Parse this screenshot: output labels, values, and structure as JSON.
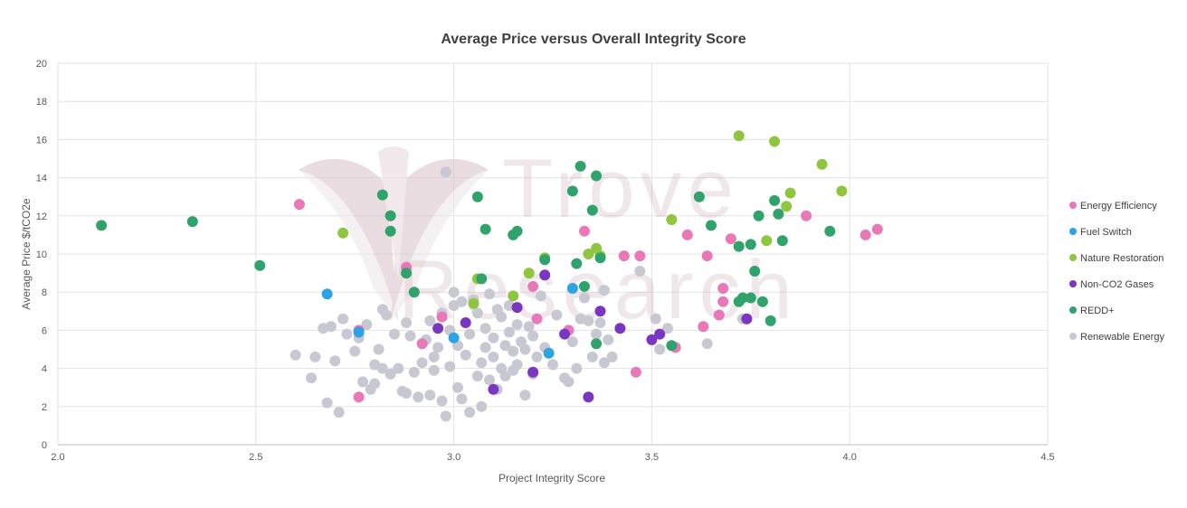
{
  "chart_data": {
    "type": "scatter",
    "title": "Average Price versus Overall Integrity Score",
    "xlabel": "Project Integrity Score",
    "ylabel": "Average Price $/tCO2e",
    "xlim": [
      2.0,
      4.5
    ],
    "ylim": [
      0,
      20
    ],
    "x_ticks": [
      "2.0",
      "2.5",
      "3.0",
      "3.5",
      "4.0",
      "4.5"
    ],
    "y_ticks": [
      "0",
      "2",
      "4",
      "6",
      "8",
      "10",
      "12",
      "14",
      "16",
      "18",
      "20"
    ],
    "grid": true,
    "legend_position": "right",
    "watermark": {
      "line1": "Trove",
      "line2": "Research"
    },
    "series": [
      {
        "name": "Energy Efficiency",
        "color": "#e878b8",
        "points": [
          [
            2.61,
            12.6
          ],
          [
            2.76,
            2.5
          ],
          [
            2.76,
            6.0
          ],
          [
            2.88,
            9.3
          ],
          [
            2.92,
            5.3
          ],
          [
            2.97,
            6.7
          ],
          [
            3.2,
            8.3
          ],
          [
            3.21,
            6.6
          ],
          [
            3.29,
            6.0
          ],
          [
            3.33,
            11.2
          ],
          [
            3.43,
            9.9
          ],
          [
            3.46,
            3.8
          ],
          [
            3.47,
            9.9
          ],
          [
            3.56,
            5.1
          ],
          [
            3.59,
            11.0
          ],
          [
            3.63,
            6.2
          ],
          [
            3.64,
            9.9
          ],
          [
            3.67,
            6.8
          ],
          [
            3.68,
            7.5
          ],
          [
            3.68,
            8.2
          ],
          [
            3.7,
            10.8
          ],
          [
            3.89,
            12.0
          ],
          [
            4.04,
            11.0
          ],
          [
            4.07,
            11.3
          ]
        ]
      },
      {
        "name": "Fuel Switch",
        "color": "#2ea3e4",
        "points": [
          [
            2.68,
            7.9
          ],
          [
            2.76,
            5.9
          ],
          [
            3.0,
            5.6
          ],
          [
            3.24,
            4.8
          ],
          [
            3.3,
            8.2
          ]
        ]
      },
      {
        "name": "Nature Restoration",
        "color": "#8fc640",
        "points": [
          [
            2.72,
            11.1
          ],
          [
            3.05,
            7.4
          ],
          [
            3.06,
            8.7
          ],
          [
            3.15,
            7.8
          ],
          [
            3.19,
            9.0
          ],
          [
            3.23,
            9.8
          ],
          [
            3.34,
            10.0
          ],
          [
            3.36,
            10.3
          ],
          [
            3.37,
            9.9
          ],
          [
            3.55,
            11.8
          ],
          [
            3.72,
            16.2
          ],
          [
            3.79,
            10.7
          ],
          [
            3.81,
            15.9
          ],
          [
            3.84,
            12.5
          ],
          [
            3.85,
            13.2
          ],
          [
            3.93,
            14.7
          ],
          [
            3.98,
            13.3
          ]
        ]
      },
      {
        "name": "Non-CO2 Gases",
        "color": "#7a35c1",
        "points": [
          [
            2.96,
            6.1
          ],
          [
            3.03,
            6.4
          ],
          [
            3.1,
            2.9
          ],
          [
            3.16,
            7.2
          ],
          [
            3.2,
            3.8
          ],
          [
            3.23,
            8.9
          ],
          [
            3.28,
            5.8
          ],
          [
            3.34,
            2.5
          ],
          [
            3.37,
            7.0
          ],
          [
            3.42,
            6.1
          ],
          [
            3.5,
            5.5
          ],
          [
            3.52,
            5.8
          ],
          [
            3.74,
            6.6
          ]
        ]
      },
      {
        "name": "REDD+",
        "color": "#2fa36b",
        "points": [
          [
            2.11,
            11.5
          ],
          [
            2.34,
            11.7
          ],
          [
            2.51,
            9.4
          ],
          [
            2.82,
            13.1
          ],
          [
            2.84,
            11.2
          ],
          [
            2.84,
            12.0
          ],
          [
            2.88,
            9.0
          ],
          [
            2.9,
            8.0
          ],
          [
            3.06,
            13.0
          ],
          [
            3.07,
            8.7
          ],
          [
            3.08,
            11.3
          ],
          [
            3.15,
            11.0
          ],
          [
            3.16,
            11.2
          ],
          [
            3.23,
            9.7
          ],
          [
            3.3,
            13.3
          ],
          [
            3.31,
            9.5
          ],
          [
            3.32,
            14.6
          ],
          [
            3.33,
            8.3
          ],
          [
            3.35,
            12.3
          ],
          [
            3.36,
            5.3
          ],
          [
            3.36,
            14.1
          ],
          [
            3.37,
            9.8
          ],
          [
            3.55,
            5.2
          ],
          [
            3.62,
            13.0
          ],
          [
            3.65,
            11.5
          ],
          [
            3.72,
            10.4
          ],
          [
            3.72,
            7.5
          ],
          [
            3.73,
            7.7
          ],
          [
            3.75,
            7.7
          ],
          [
            3.75,
            10.5
          ],
          [
            3.76,
            9.1
          ],
          [
            3.77,
            12.0
          ],
          [
            3.78,
            7.5
          ],
          [
            3.8,
            6.5
          ],
          [
            3.81,
            12.8
          ],
          [
            3.82,
            12.1
          ],
          [
            3.83,
            10.7
          ],
          [
            3.95,
            11.2
          ]
        ]
      },
      {
        "name": "Renewable Energy",
        "color": "#c8c8d2",
        "points": [
          [
            2.6,
            4.7
          ],
          [
            2.64,
            3.5
          ],
          [
            2.65,
            4.6
          ],
          [
            2.67,
            6.1
          ],
          [
            2.68,
            2.2
          ],
          [
            2.69,
            6.2
          ],
          [
            2.7,
            4.4
          ],
          [
            2.71,
            1.7
          ],
          [
            2.72,
            6.6
          ],
          [
            2.73,
            5.8
          ],
          [
            2.75,
            4.9
          ],
          [
            2.76,
            5.6
          ],
          [
            2.77,
            3.3
          ],
          [
            2.78,
            6.3
          ],
          [
            2.79,
            2.9
          ],
          [
            2.8,
            4.2
          ],
          [
            2.8,
            3.2
          ],
          [
            2.81,
            5.0
          ],
          [
            2.82,
            7.1
          ],
          [
            2.82,
            4.0
          ],
          [
            2.83,
            6.8
          ],
          [
            2.84,
            3.7
          ],
          [
            2.85,
            5.8
          ],
          [
            2.86,
            4.0
          ],
          [
            2.87,
            2.8
          ],
          [
            2.88,
            6.4
          ],
          [
            2.88,
            2.7
          ],
          [
            2.89,
            5.7
          ],
          [
            2.9,
            3.8
          ],
          [
            2.91,
            2.5
          ],
          [
            2.92,
            4.3
          ],
          [
            2.93,
            5.5
          ],
          [
            2.94,
            6.5
          ],
          [
            2.94,
            2.6
          ],
          [
            2.95,
            4.6
          ],
          [
            2.95,
            3.9
          ],
          [
            2.96,
            5.1
          ],
          [
            2.97,
            6.9
          ],
          [
            2.97,
            2.3
          ],
          [
            2.98,
            14.3
          ],
          [
            2.98,
            1.5
          ],
          [
            2.99,
            6.0
          ],
          [
            2.99,
            4.1
          ],
          [
            3.0,
            8.0
          ],
          [
            3.0,
            7.3
          ],
          [
            3.01,
            5.2
          ],
          [
            3.01,
            3.0
          ],
          [
            3.02,
            7.5
          ],
          [
            3.02,
            2.4
          ],
          [
            3.03,
            4.7
          ],
          [
            3.04,
            1.7
          ],
          [
            3.04,
            5.8
          ],
          [
            3.05,
            7.6
          ],
          [
            3.06,
            3.6
          ],
          [
            3.06,
            6.9
          ],
          [
            3.07,
            4.3
          ],
          [
            3.07,
            2.0
          ],
          [
            3.08,
            5.1
          ],
          [
            3.08,
            6.1
          ],
          [
            3.09,
            7.9
          ],
          [
            3.09,
            3.4
          ],
          [
            3.1,
            4.6
          ],
          [
            3.1,
            5.6
          ],
          [
            3.11,
            2.9
          ],
          [
            3.11,
            7.1
          ],
          [
            3.12,
            4.0
          ],
          [
            3.12,
            6.7
          ],
          [
            3.13,
            5.2
          ],
          [
            3.13,
            3.6
          ],
          [
            3.14,
            5.9
          ],
          [
            3.14,
            7.3
          ],
          [
            3.15,
            4.9
          ],
          [
            3.15,
            3.9
          ],
          [
            3.16,
            4.2
          ],
          [
            3.16,
            6.3
          ],
          [
            3.17,
            5.4
          ],
          [
            3.18,
            2.6
          ],
          [
            3.18,
            5.0
          ],
          [
            3.19,
            6.2
          ],
          [
            3.2,
            3.7
          ],
          [
            3.2,
            5.7
          ],
          [
            3.21,
            4.6
          ],
          [
            3.22,
            7.8
          ],
          [
            3.23,
            5.1
          ],
          [
            3.25,
            4.2
          ],
          [
            3.26,
            6.8
          ],
          [
            3.28,
            3.5
          ],
          [
            3.29,
            3.3
          ],
          [
            3.3,
            5.4
          ],
          [
            3.31,
            4.0
          ],
          [
            3.32,
            6.6
          ],
          [
            3.33,
            7.7
          ],
          [
            3.34,
            6.5
          ],
          [
            3.35,
            4.6
          ],
          [
            3.36,
            5.8
          ],
          [
            3.37,
            6.4
          ],
          [
            3.38,
            4.3
          ],
          [
            3.38,
            8.1
          ],
          [
            3.39,
            5.5
          ],
          [
            3.4,
            4.6
          ],
          [
            3.47,
            9.1
          ],
          [
            3.51,
            6.6
          ],
          [
            3.52,
            5.0
          ],
          [
            3.54,
            6.1
          ],
          [
            3.64,
            5.3
          ],
          [
            3.73,
            6.6
          ]
        ]
      }
    ]
  }
}
